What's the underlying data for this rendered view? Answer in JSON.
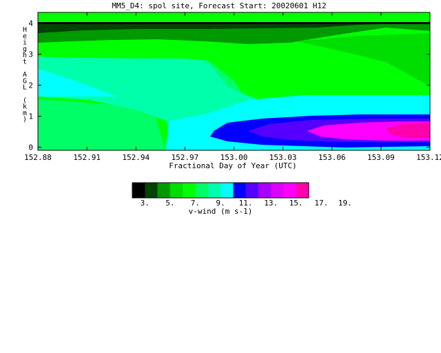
{
  "chart_data": {
    "type": "heatmap",
    "title": "MM5_D4: spol site,  Forecast Start: 20020601 H12",
    "xlabel": "Fractional Day of Year (UTC)",
    "ylabel": "Height AGL (km)",
    "xlim": [
      152.88,
      153.12
    ],
    "ylim": [
      -0.1,
      4.35
    ],
    "x_ticks": [
      "152.88",
      "152.91",
      "152.94",
      "152.97",
      "153.00",
      "153.03",
      "153.06",
      "153.09",
      "153.12"
    ],
    "y_ticks": [
      "0",
      "1",
      "2",
      "3",
      "4"
    ],
    "colorbar": {
      "label": "v-wind (m s-1)",
      "tick_labels": [
        "3.",
        "5.",
        "7.",
        "9.",
        "11.",
        "13.",
        "15.",
        "17.",
        "19."
      ],
      "levels": [
        2,
        3,
        4,
        5,
        6,
        7,
        8,
        9,
        10,
        11,
        12,
        13,
        14,
        15,
        16,
        17,
        18,
        19
      ],
      "colors": [
        "#000000",
        "#004400",
        "#009900",
        "#00dd00",
        "#00ff00",
        "#00ff66",
        "#00ffaa",
        "#00ffff",
        "#0000ff",
        "#5500ff",
        "#aa00ff",
        "#dd00ff",
        "#ff00ff",
        "#ff00aa"
      ]
    },
    "regions": [
      {
        "level": 13,
        "color": "#0000ff",
        "points": [
          [
            152.985,
            0.55
          ],
          [
            153.0,
            0.3
          ],
          [
            153.02,
            0.18
          ],
          [
            153.06,
            0.12
          ],
          [
            153.12,
            0.1
          ],
          [
            153.12,
            1.12
          ],
          [
            153.08,
            1.12
          ],
          [
            153.05,
            1.05
          ],
          [
            153.02,
            0.95
          ],
          [
            152.995,
            0.8
          ]
        ]
      },
      {
        "level": 15,
        "color": "#5500ff",
        "points": [
          [
            153.01,
            0.6
          ],
          [
            153.03,
            0.4
          ],
          [
            153.06,
            0.25
          ],
          [
            153.12,
            0.2
          ],
          [
            153.12,
            1.05
          ],
          [
            153.08,
            1.0
          ],
          [
            153.04,
            0.9
          ],
          [
            153.02,
            0.75
          ]
        ]
      },
      {
        "level": 17,
        "color": "#ff00ff",
        "points": [
          [
            153.045,
            0.55
          ],
          [
            153.06,
            0.38
          ],
          [
            153.09,
            0.3
          ],
          [
            153.12,
            0.3
          ],
          [
            153.12,
            0.95
          ],
          [
            153.09,
            0.9
          ],
          [
            153.06,
            0.78
          ]
        ]
      }
    ]
  }
}
